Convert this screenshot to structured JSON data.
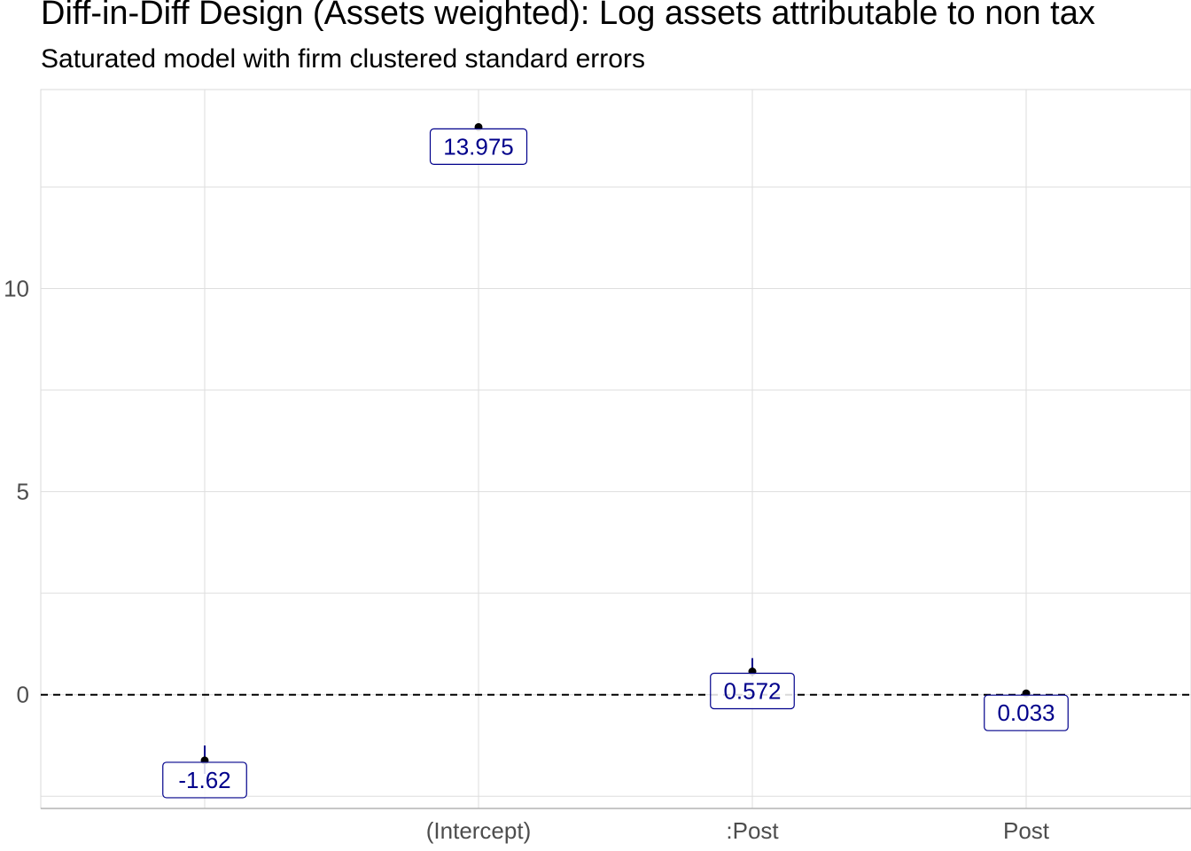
{
  "chart_data": {
    "type": "scatter",
    "title": "Diff-in-Diff Design (Assets weighted): Log assets attributable to non tax",
    "subtitle": "Saturated model with firm clustered standard errors",
    "xlabel": "",
    "ylabel": "",
    "categories": [
      "",
      "(Intercept)",
      ":Post",
      "Post"
    ],
    "yticks": [
      0,
      5,
      10
    ],
    "ylim": [
      -2.8,
      14.9
    ],
    "reference_line": 0,
    "grid": true,
    "series": [
      {
        "values": [
          -1.62,
          13.975,
          0.572,
          0.033
        ],
        "labels": [
          "-1.62",
          "13.975",
          "0.572",
          "0.033"
        ],
        "ci_low": [
          -1.95,
          13.9,
          0.45,
          0.0
        ],
        "ci_high": [
          -1.25,
          14.05,
          0.9,
          0.07
        ]
      }
    ],
    "colors": {
      "point": "#000000",
      "errorbar": "#00008b",
      "label_text": "#00008b",
      "grid": "#dedede",
      "axis": "#b3b3b3"
    }
  }
}
